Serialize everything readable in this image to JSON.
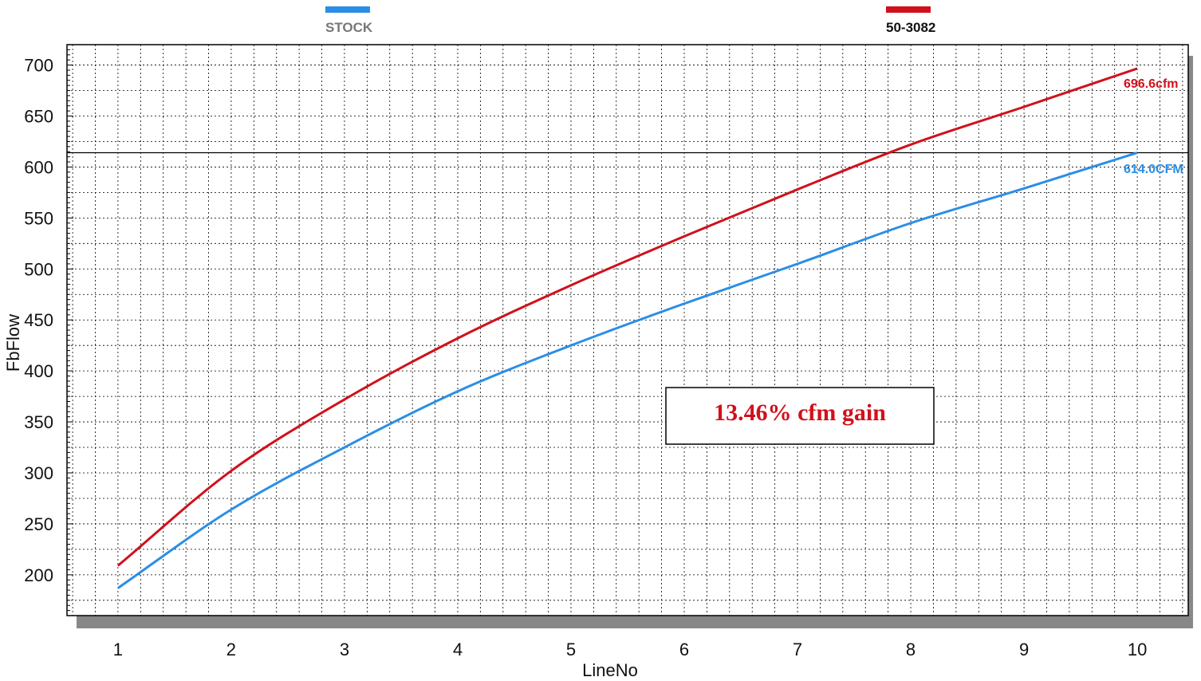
{
  "chart_data": {
    "type": "line",
    "xlabel": "LineNo",
    "ylabel": "FbFlow",
    "xlim": [
      0.55,
      10.45
    ],
    "ylim": [
      160,
      720
    ],
    "x_ticks": [
      "1",
      "2",
      "3",
      "4",
      "5",
      "6",
      "7",
      "8",
      "9",
      "10"
    ],
    "y_ticks": [
      "200",
      "250",
      "300",
      "350",
      "400",
      "450",
      "500",
      "550",
      "600",
      "650",
      "700"
    ],
    "grid": true,
    "legend_position": "top",
    "reference_line_y": 614,
    "series": [
      {
        "name": "STOCK",
        "color": "#2b8ee6",
        "x": [
          1,
          2,
          3,
          4,
          5,
          6,
          7,
          8,
          9,
          10
        ],
        "values": [
          187,
          264,
          325,
          380,
          425,
          466,
          505,
          545,
          579,
          614
        ],
        "end_label": "614.0CFM"
      },
      {
        "name": "50-3082",
        "color": "#d0111b",
        "x": [
          1,
          2,
          3,
          4,
          5,
          6,
          7,
          8,
          9,
          10
        ],
        "values": [
          209,
          302,
          372,
          432,
          484,
          532,
          578,
          622,
          659,
          696.6
        ],
        "end_label": "696.6cfm"
      }
    ],
    "annotation": {
      "text": "13.46% cfm gain",
      "color": "#d0111b"
    }
  }
}
